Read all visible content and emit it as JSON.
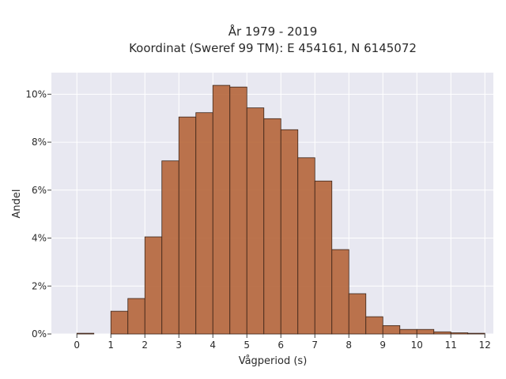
{
  "chart_data": {
    "type": "bar",
    "title_line1": "År 1979 - 2019",
    "title_line2": "Koordinat (Sweref 99 TM): E 454161, N 6145072",
    "xlabel": "Vågperiod (s)",
    "ylabel": "Andel",
    "xlim": [
      -0.75,
      12.25
    ],
    "ylim": [
      0,
      10.9
    ],
    "x_ticks": [
      0,
      1,
      2,
      3,
      4,
      5,
      6,
      7,
      8,
      9,
      10,
      11,
      12
    ],
    "y_ticks": [
      0,
      2,
      4,
      6,
      8,
      10
    ],
    "y_tick_labels": [
      "0%",
      "2%",
      "4%",
      "6%",
      "8%",
      "10%"
    ],
    "bin_width": 0.5,
    "bins": [
      {
        "x0": 0.0,
        "value": 0.03
      },
      {
        "x0": 0.5,
        "value": 0.0
      },
      {
        "x0": 1.0,
        "value": 0.95
      },
      {
        "x0": 1.5,
        "value": 1.48
      },
      {
        "x0": 2.0,
        "value": 4.05
      },
      {
        "x0": 2.5,
        "value": 7.22
      },
      {
        "x0": 3.0,
        "value": 9.05
      },
      {
        "x0": 3.5,
        "value": 9.23
      },
      {
        "x0": 4.0,
        "value": 10.37
      },
      {
        "x0": 4.5,
        "value": 10.3
      },
      {
        "x0": 5.0,
        "value": 9.43
      },
      {
        "x0": 5.5,
        "value": 8.98
      },
      {
        "x0": 6.0,
        "value": 8.52
      },
      {
        "x0": 6.5,
        "value": 7.35
      },
      {
        "x0": 7.0,
        "value": 6.38
      },
      {
        "x0": 7.5,
        "value": 3.52
      },
      {
        "x0": 8.0,
        "value": 1.68
      },
      {
        "x0": 8.5,
        "value": 0.72
      },
      {
        "x0": 9.0,
        "value": 0.35
      },
      {
        "x0": 9.5,
        "value": 0.19
      },
      {
        "x0": 10.0,
        "value": 0.19
      },
      {
        "x0": 10.5,
        "value": 0.09
      },
      {
        "x0": 11.0,
        "value": 0.05
      },
      {
        "x0": 11.5,
        "value": 0.03
      }
    ],
    "colors": {
      "bar_fill": "#b5653a",
      "bar_edge": "#3a2418",
      "plot_bg": "#e8e8f1",
      "grid": "#ffffff"
    },
    "grid": true
  }
}
